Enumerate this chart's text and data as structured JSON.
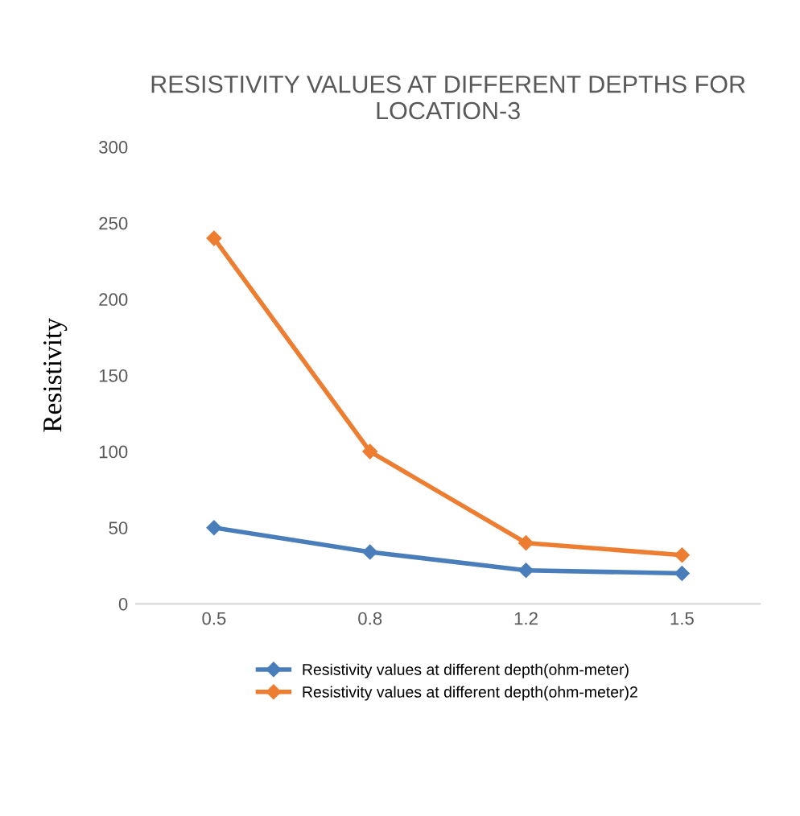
{
  "chart_data": {
    "type": "line",
    "title": "RESISTIVITY VALUES AT DIFFERENT DEPTHS FOR LOCATION-3",
    "ylabel": "Resistivity",
    "categories": [
      "0.5",
      "0.8",
      "1.2",
      "1.5"
    ],
    "series": [
      {
        "name": "Resistivity values at different depth(ohm-meter)",
        "color": "#4a7ebb",
        "values": [
          50,
          34,
          22,
          20
        ]
      },
      {
        "name": "Resistivity values at different depth(ohm-meter)2",
        "color": "#ed7d31",
        "values": [
          240,
          100,
          40,
          32
        ]
      }
    ],
    "ylim": [
      0,
      300
    ],
    "yticks": [
      0,
      50,
      100,
      150,
      200,
      250,
      300
    ],
    "grid": false,
    "legend": "bottom",
    "marker": "diamond",
    "line_style": "solid"
  }
}
